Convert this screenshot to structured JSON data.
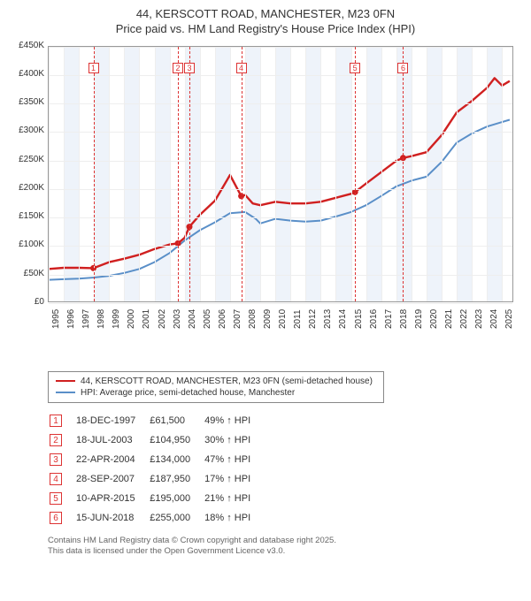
{
  "title_line1": "44, KERSCOTT ROAD, MANCHESTER, M23 0FN",
  "title_line2": "Price paid vs. HM Land Registry's House Price Index (HPI)",
  "chart": {
    "type": "line",
    "x_min": 1995,
    "x_max": 2025.8,
    "y_min": 0,
    "y_max": 450000,
    "y_ticks": [
      0,
      50000,
      100000,
      150000,
      200000,
      250000,
      300000,
      350000,
      400000,
      450000
    ],
    "y_tick_labels": [
      "£0",
      "£50K",
      "£100K",
      "£150K",
      "£200K",
      "£250K",
      "£300K",
      "£350K",
      "£400K",
      "£450K"
    ],
    "x_ticks": [
      1995,
      1996,
      1997,
      1998,
      1999,
      2000,
      2001,
      2002,
      2003,
      2004,
      2005,
      2006,
      2007,
      2008,
      2009,
      2010,
      2011,
      2012,
      2013,
      2014,
      2015,
      2016,
      2017,
      2018,
      2019,
      2020,
      2021,
      2022,
      2023,
      2024,
      2025
    ],
    "band_years": [
      1996,
      1998,
      2000,
      2002,
      2004,
      2006,
      2008,
      2010,
      2012,
      2014,
      2016,
      2018,
      2020,
      2022,
      2024
    ],
    "background_color": "#ffffff",
    "grid_color": "#eeeeee",
    "axis_color": "#999999",
    "series": {
      "property": {
        "color": "#d02020",
        "width": 2.4,
        "label": "44, KERSCOTT ROAD, MANCHESTER, M23 0FN (semi-detached house)",
        "points": [
          [
            1995,
            60000
          ],
          [
            1996,
            62000
          ],
          [
            1997,
            62000
          ],
          [
            1997.96,
            61500
          ],
          [
            1999,
            72000
          ],
          [
            2000,
            78000
          ],
          [
            2001,
            85000
          ],
          [
            2002,
            95000
          ],
          [
            2003,
            103000
          ],
          [
            2003.55,
            104950
          ],
          [
            2004,
            115000
          ],
          [
            2004.31,
            134000
          ],
          [
            2005,
            155000
          ],
          [
            2006,
            180000
          ],
          [
            2007,
            225000
          ],
          [
            2007.74,
            187950
          ],
          [
            2008,
            190000
          ],
          [
            2008.5,
            175000
          ],
          [
            2009,
            172000
          ],
          [
            2010,
            178000
          ],
          [
            2011,
            175000
          ],
          [
            2012,
            175000
          ],
          [
            2013,
            178000
          ],
          [
            2014,
            185000
          ],
          [
            2015,
            192000
          ],
          [
            2015.27,
            195000
          ],
          [
            2016,
            210000
          ],
          [
            2017,
            230000
          ],
          [
            2018,
            250000
          ],
          [
            2018.45,
            255000
          ],
          [
            2019,
            258000
          ],
          [
            2020,
            265000
          ],
          [
            2021,
            295000
          ],
          [
            2022,
            335000
          ],
          [
            2023,
            355000
          ],
          [
            2024,
            378000
          ],
          [
            2024.5,
            395000
          ],
          [
            2025,
            382000
          ],
          [
            2025.5,
            390000
          ]
        ],
        "sale_dots": [
          [
            1997.96,
            61500
          ],
          [
            2003.55,
            104950
          ],
          [
            2004.31,
            134000
          ],
          [
            2007.74,
            187950
          ],
          [
            2015.27,
            195000
          ],
          [
            2018.45,
            255000
          ]
        ]
      },
      "hpi": {
        "color": "#5a8fc8",
        "width": 2,
        "label": "HPI: Average price, semi-detached house, Manchester",
        "points": [
          [
            1995,
            41000
          ],
          [
            1996,
            42000
          ],
          [
            1997,
            43000
          ],
          [
            1998,
            45000
          ],
          [
            1999,
            48000
          ],
          [
            2000,
            53000
          ],
          [
            2001,
            60000
          ],
          [
            2002,
            72000
          ],
          [
            2003,
            88000
          ],
          [
            2004,
            110000
          ],
          [
            2005,
            128000
          ],
          [
            2006,
            142000
          ],
          [
            2007,
            158000
          ],
          [
            2008,
            160000
          ],
          [
            2008.7,
            148000
          ],
          [
            2009,
            140000
          ],
          [
            2010,
            148000
          ],
          [
            2011,
            145000
          ],
          [
            2012,
            143000
          ],
          [
            2013,
            145000
          ],
          [
            2014,
            152000
          ],
          [
            2015,
            160000
          ],
          [
            2016,
            172000
          ],
          [
            2017,
            188000
          ],
          [
            2018,
            205000
          ],
          [
            2019,
            215000
          ],
          [
            2020,
            222000
          ],
          [
            2021,
            248000
          ],
          [
            2022,
            282000
          ],
          [
            2023,
            298000
          ],
          [
            2024,
            310000
          ],
          [
            2025,
            318000
          ],
          [
            2025.5,
            322000
          ]
        ]
      }
    },
    "markers": [
      {
        "n": "1",
        "year": 1997.96
      },
      {
        "n": "2",
        "year": 2003.55
      },
      {
        "n": "3",
        "year": 2004.31
      },
      {
        "n": "4",
        "year": 2007.74
      },
      {
        "n": "5",
        "year": 2015.27
      },
      {
        "n": "6",
        "year": 2018.45
      }
    ]
  },
  "legend": {
    "rows": [
      {
        "color": "#d02020",
        "label": "44, KERSCOTT ROAD, MANCHESTER, M23 0FN (semi-detached house)"
      },
      {
        "color": "#5a8fc8",
        "label": "HPI: Average price, semi-detached house, Manchester"
      }
    ]
  },
  "sales": [
    {
      "n": "1",
      "date": "18-DEC-1997",
      "price": "£61,500",
      "pct": "49% ↑ HPI"
    },
    {
      "n": "2",
      "date": "18-JUL-2003",
      "price": "£104,950",
      "pct": "30% ↑ HPI"
    },
    {
      "n": "3",
      "date": "22-APR-2004",
      "price": "£134,000",
      "pct": "47% ↑ HPI"
    },
    {
      "n": "4",
      "date": "28-SEP-2007",
      "price": "£187,950",
      "pct": "17% ↑ HPI"
    },
    {
      "n": "5",
      "date": "10-APR-2015",
      "price": "£195,000",
      "pct": "21% ↑ HPI"
    },
    {
      "n": "6",
      "date": "15-JUN-2018",
      "price": "£255,000",
      "pct": "18% ↑ HPI"
    }
  ],
  "attribution_line1": "Contains HM Land Registry data © Crown copyright and database right 2025.",
  "attribution_line2": "This data is licensed under the Open Government Licence v3.0."
}
